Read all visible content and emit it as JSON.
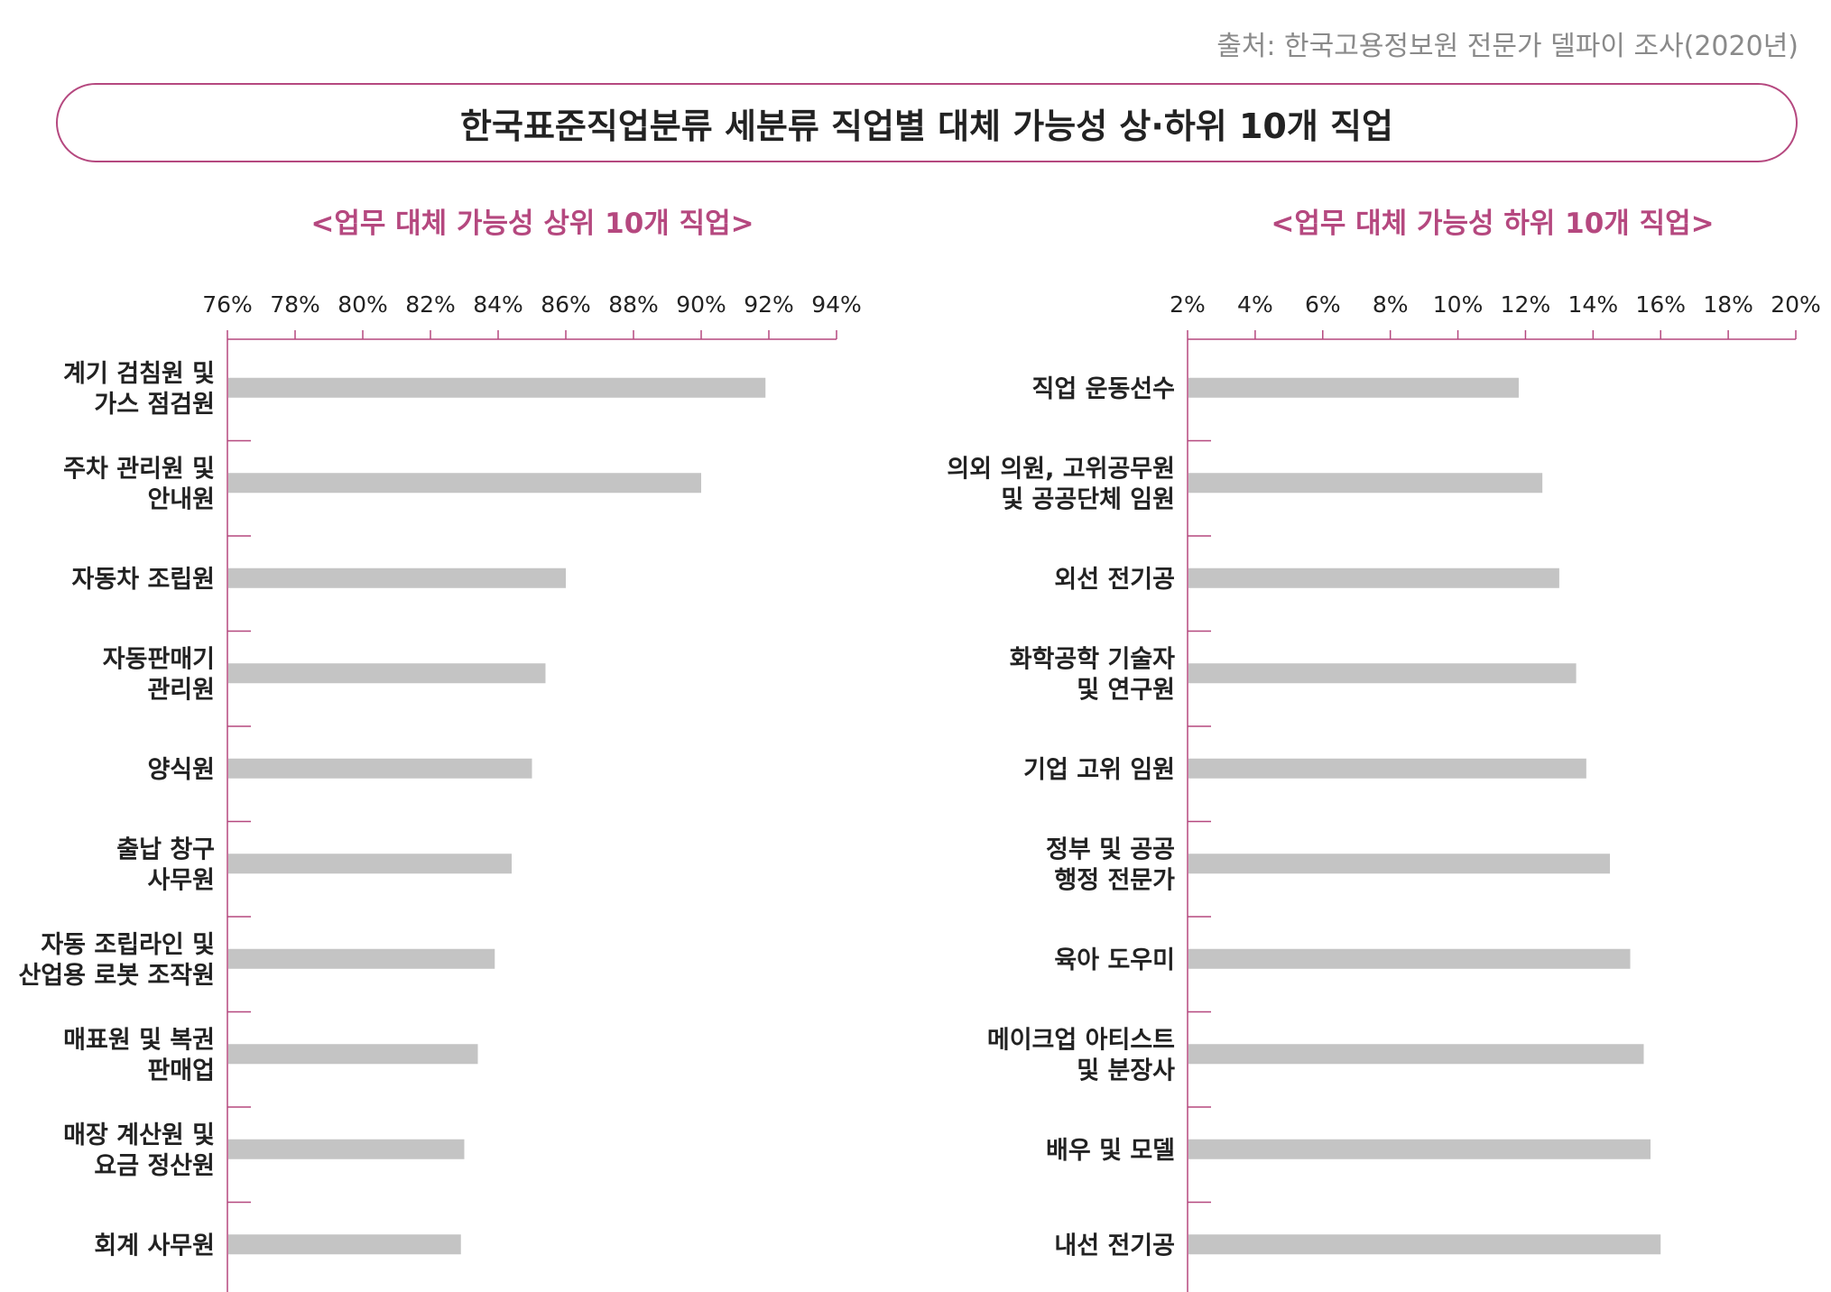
{
  "source": "출처: 한국고용정보원 전문가 델파이 조사(2020년)",
  "title": "한국표준직업분류 세분류 직업별 대체 가능성 상·하위 10개 직업",
  "colors": {
    "accent": "#b5487f",
    "bar": "#c4c4c4",
    "text": "#222222"
  },
  "chart_data": [
    {
      "type": "bar",
      "orientation": "horizontal",
      "title": "<업무 대체 가능성 상위 10개 직업>",
      "xlim": [
        76,
        94
      ],
      "x_ticks": [
        76,
        78,
        80,
        82,
        84,
        86,
        88,
        90,
        92,
        94
      ],
      "tick_suffix": "%",
      "categories": [
        "계기 검침원 및\n가스 점검원",
        "주차 관리원 및\n안내원",
        "자동차 조립원",
        "자동판매기\n관리원",
        "양식원",
        "출납 창구\n사무원",
        "자동 조립라인 및\n산업용 로봇 조작원",
        "매표원 및 복권\n판매업",
        "매장 계산원 및\n요금 정산원",
        "회계 사무원"
      ],
      "values": [
        91.9,
        90.0,
        86.0,
        85.4,
        85.0,
        84.4,
        83.9,
        83.4,
        83.0,
        82.9
      ]
    },
    {
      "type": "bar",
      "orientation": "horizontal",
      "title": "<업무 대체 가능성 하위 10개 직업>",
      "xlim": [
        2,
        20
      ],
      "x_ticks": [
        2,
        4,
        6,
        8,
        10,
        12,
        14,
        16,
        18,
        20
      ],
      "tick_suffix": "%",
      "categories": [
        "직업 운동선수",
        "의외 의원, 고위공무원\n및 공공단체 임원",
        "외선 전기공",
        "화학공학 기술자\n및 연구원",
        "기업 고위 임원",
        "정부 및 공공\n행정 전문가",
        "육아 도우미",
        "메이크업 아티스트\n및 분장사",
        "배우 및 모델",
        "내선 전기공"
      ],
      "values": [
        11.8,
        12.5,
        13.0,
        13.5,
        13.8,
        14.5,
        15.1,
        15.5,
        15.7,
        16.0
      ]
    }
  ]
}
